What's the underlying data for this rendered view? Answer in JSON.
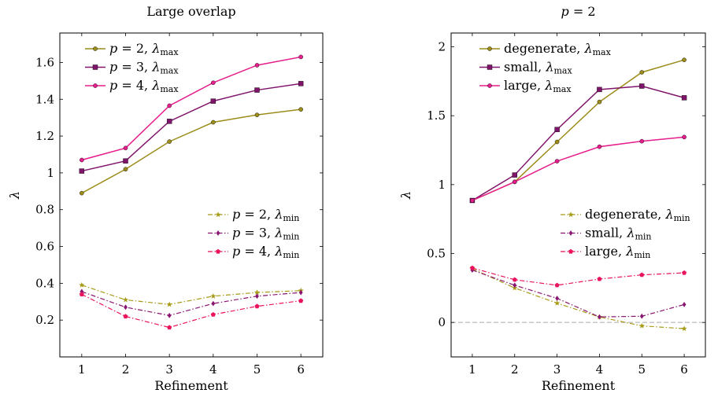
{
  "chart_data": [
    {
      "type": "line",
      "title": "Large overlap",
      "xlabel": "Refinement",
      "ylabel": "λ",
      "x": [
        1,
        2,
        3,
        4,
        5,
        6
      ],
      "xlim": [
        0.5,
        6.5
      ],
      "ylim": [
        0.0,
        1.76
      ],
      "yticks": [
        0.2,
        0.4,
        0.6,
        0.8,
        1.0,
        1.2,
        1.4,
        1.6
      ],
      "ytick_labels": [
        "0.2",
        "0.4",
        "0.6",
        "0.8",
        "1",
        "1.2",
        "1.4",
        "1.6"
      ],
      "grid": false,
      "legends": [
        "top-left",
        "center-right"
      ],
      "series": [
        {
          "name": "p = 2, λmax",
          "values": [
            0.89,
            1.02,
            1.17,
            1.275,
            1.315,
            1.345
          ],
          "color": "#9c8c1a",
          "dash": "solid",
          "marker": "circle",
          "legend": 0
        },
        {
          "name": "p = 3, λmax",
          "values": [
            1.01,
            1.065,
            1.28,
            1.39,
            1.45,
            1.485
          ],
          "color": "#80146b",
          "dash": "solid",
          "marker": "square",
          "legend": 0
        },
        {
          "name": "p = 4, λmax",
          "values": [
            1.07,
            1.135,
            1.365,
            1.49,
            1.585,
            1.63
          ],
          "color": "#e61d8c",
          "dash": "solid",
          "marker": "circle",
          "legend": 0
        },
        {
          "name": "p = 2, λmin",
          "values": [
            0.39,
            0.31,
            0.285,
            0.33,
            0.35,
            0.36
          ],
          "color": "#a69a16",
          "dash": "dashdot",
          "marker": "star",
          "legend": 1
        },
        {
          "name": "p = 3, λmin",
          "values": [
            0.355,
            0.27,
            0.225,
            0.29,
            0.33,
            0.35
          ],
          "color": "#8a1570",
          "dash": "dashdot",
          "marker": "diamond",
          "legend": 1
        },
        {
          "name": "p = 4, λmin",
          "values": [
            0.34,
            0.22,
            0.16,
            0.23,
            0.275,
            0.305
          ],
          "color": "#e8145f",
          "dash": "dashdot",
          "marker": "pentagon",
          "legend": 1
        }
      ]
    },
    {
      "type": "line",
      "title": "p = 2",
      "xlabel": "Refinement",
      "ylabel": "λ",
      "x": [
        1,
        2,
        3,
        4,
        5,
        6
      ],
      "xlim": [
        0.5,
        6.5
      ],
      "ylim": [
        -0.25,
        2.1
      ],
      "yticks": [
        0,
        0.5,
        1,
        1.5,
        2
      ],
      "ytick_labels": [
        "0",
        "0.5",
        "1",
        "1.5",
        "2"
      ],
      "grid": false,
      "legends": [
        "top-left",
        "center-right"
      ],
      "reference_line": {
        "y": 0,
        "color": "#aaaaaa"
      },
      "series": [
        {
          "name": "degenerate, λmax",
          "values": [
            0.885,
            1.02,
            1.31,
            1.6,
            1.815,
            1.905
          ],
          "color": "#9c8c1a",
          "dash": "solid",
          "marker": "circle",
          "legend": 0
        },
        {
          "name": "small, λmax",
          "values": [
            0.885,
            1.07,
            1.4,
            1.69,
            1.715,
            1.63
          ],
          "color": "#80146b",
          "dash": "solid",
          "marker": "square",
          "legend": 0
        },
        {
          "name": "large, λmax",
          "values": [
            0.885,
            1.02,
            1.17,
            1.275,
            1.315,
            1.345
          ],
          "color": "#e61d8c",
          "dash": "solid",
          "marker": "circle",
          "legend": 0
        },
        {
          "name": "degenerate, λmin",
          "values": [
            0.39,
            0.25,
            0.14,
            0.04,
            -0.025,
            -0.045
          ],
          "color": "#a69a16",
          "dash": "dashdot",
          "marker": "star",
          "legend": 1
        },
        {
          "name": "small, λmin",
          "values": [
            0.38,
            0.27,
            0.175,
            0.04,
            0.045,
            0.13
          ],
          "color": "#8a1570",
          "dash": "dashdot",
          "marker": "diamond",
          "legend": 1
        },
        {
          "name": "large, λmin",
          "values": [
            0.395,
            0.31,
            0.27,
            0.315,
            0.345,
            0.36
          ],
          "color": "#e8145f",
          "dash": "dashdot",
          "marker": "pentagon",
          "legend": 1
        }
      ]
    }
  ]
}
